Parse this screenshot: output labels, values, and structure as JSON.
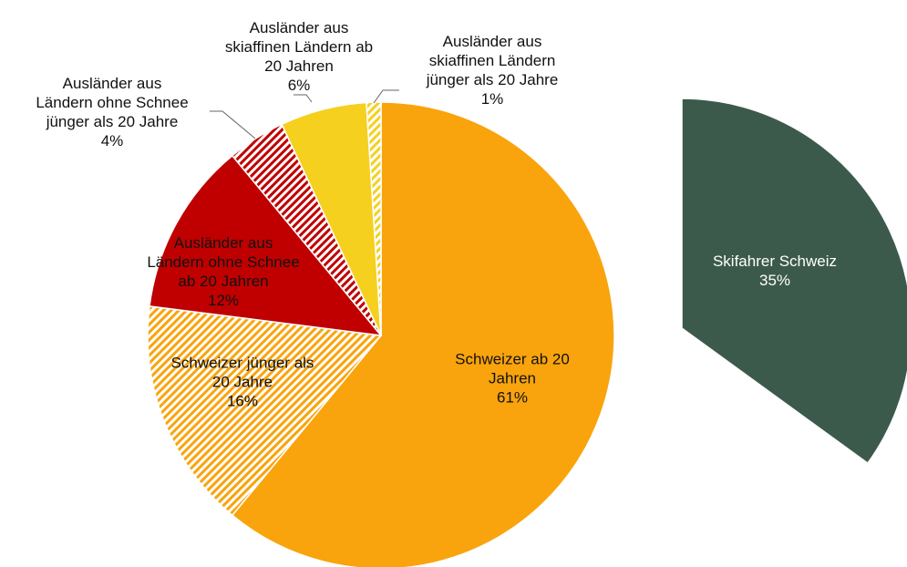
{
  "chart_data": [
    {
      "type": "pie",
      "categories": [
        "Schweizer ab 20\nJahren",
        "Schweizer jünger als\n20 Jahre",
        "Ausländer aus\nLändern ohne Schnee\nab 20 Jahren",
        "Ausländer aus\nLändern ohne Schnee\njünger als 20 Jahre",
        "Ausländer aus\nskiaffinen Ländern ab\n20 Jahren",
        "Ausländer aus\nskiaffinen Ländern\njünger als 20 Jahre"
      ],
      "values": [
        61,
        16,
        12,
        4,
        6,
        1
      ],
      "value_labels": [
        "61%",
        "16%",
        "12%",
        "4%",
        "6%",
        "1%"
      ],
      "colors": [
        "#f9a40d",
        "#f9a40d",
        "#c00000",
        "#c00000",
        "#f5d01f",
        "#f5d01f"
      ],
      "patterns": [
        "solid",
        "hatch",
        "solid",
        "hatch",
        "solid",
        "hatch"
      ]
    },
    {
      "type": "pie",
      "categories": [
        "Skifahrer Schweiz"
      ],
      "values": [
        35
      ],
      "value_labels": [
        "35%"
      ],
      "colors": [
        "#3c5a4b"
      ],
      "patterns": [
        "solid"
      ]
    }
  ]
}
